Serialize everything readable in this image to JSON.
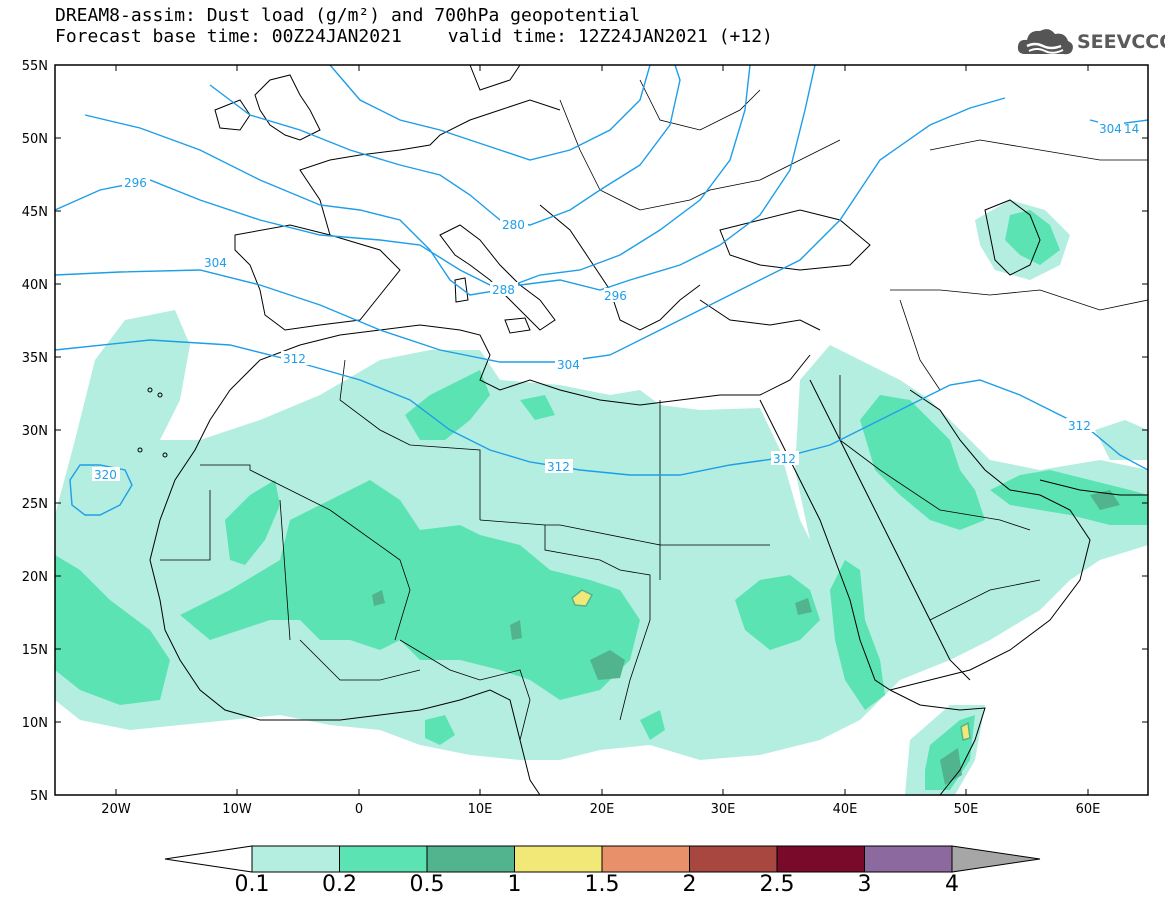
{
  "header": {
    "title_line1": "DREAM8-assim: Dust load (g/m²) and 700hPa geopotential",
    "forecast_base": "Forecast base time: 00Z24JAN2021",
    "valid_time": "valid time: 12Z24JAN2021 (+12)"
  },
  "logo": {
    "text": "SEEVCCC",
    "icon": "cloud-icon"
  },
  "map": {
    "lon_range": [
      -25,
      65
    ],
    "lat_range": [
      5,
      55
    ],
    "lat_labels": [
      "55N",
      "50N",
      "45N",
      "40N",
      "35N",
      "30N",
      "25N",
      "20N",
      "15N",
      "10N",
      "5N"
    ],
    "lon_labels": [
      "20W",
      "10W",
      "0",
      "10E",
      "20E",
      "30E",
      "40E",
      "50E",
      "60E"
    ],
    "contour_color": "#1e9ee8",
    "contour_labels": [
      "296",
      "280",
      "304",
      "288",
      "296",
      "312",
      "304",
      "312",
      "312",
      "320",
      "312",
      "304",
      "14"
    ]
  },
  "colorbar": {
    "ticks": [
      "0.1",
      "0.2",
      "0.5",
      "1",
      "1.5",
      "2",
      "2.5",
      "3",
      "4"
    ],
    "colors": [
      "#ffffff",
      "#b3eee0",
      "#5ce3b4",
      "#52b48e",
      "#f2e878",
      "#e8906a",
      "#a8473f",
      "#7a0a2a",
      "#8c6aa0",
      "#a6a6a6"
    ]
  },
  "dust_colors": {
    "light": "#b3eee0",
    "medium": "#5ce3b4",
    "dark": "#52b48e",
    "yellow": "#f2e878"
  }
}
